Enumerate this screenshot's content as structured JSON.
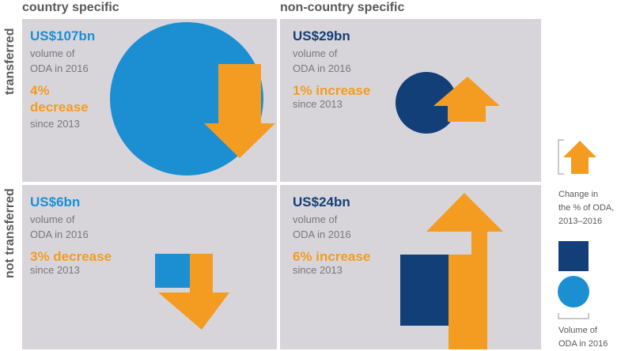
{
  "headers": {
    "country_specific": "country specific",
    "non_country_specific": "non-country specific",
    "transferred": "transferred",
    "not_transferred": "not transferred"
  },
  "panels": {
    "cs_transferred": {
      "amount": "US$107bn",
      "amount_line1": "volume of",
      "amount_line2": "ODA in 2016",
      "change_line1": "4%",
      "change_line2": "decrease",
      "since": "since 2013",
      "direction": "decrease",
      "shape": "circle"
    },
    "ncs_transferred": {
      "amount": "US$29bn",
      "amount_line1": "volume of",
      "amount_line2": "ODA in 2016",
      "change_line1": "1% increase",
      "since": "since 2013",
      "direction": "increase",
      "shape": "circle"
    },
    "cs_not_transferred": {
      "amount": "US$6bn",
      "amount_line1": "volume of",
      "amount_line2": "ODA in 2016",
      "change_line1": "3% decrease",
      "since": "since 2013",
      "direction": "decrease",
      "shape": "square"
    },
    "ncs_not_transferred": {
      "amount": "US$24bn",
      "amount_line1": "volume of",
      "amount_line2": "ODA in 2016",
      "change_line1": "6% increase",
      "since": "since 2013",
      "direction": "increase",
      "shape": "square"
    }
  },
  "legend": {
    "change_line1": "Change in",
    "change_line2": "the % of ODA,",
    "change_line3": "2013–2016",
    "volume_line1": "Volume of",
    "volume_line2": "ODA in 2016"
  },
  "colors": {
    "light_blue": "#1b8fd2",
    "dark_blue": "#123f77",
    "orange": "#f39c21",
    "panel": "#d8d5da",
    "header": "#58595b"
  }
}
